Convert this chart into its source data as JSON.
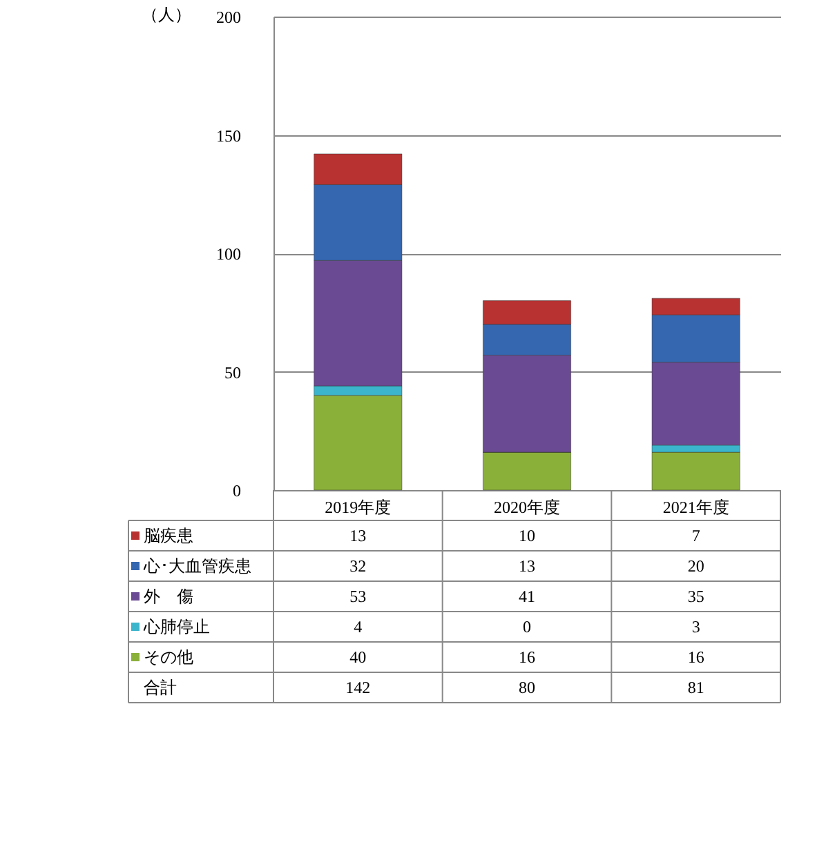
{
  "chart_data": {
    "type": "bar",
    "stacked": true,
    "ylabel": "（人）",
    "categories": [
      "2019年度",
      "2020年度",
      "2021年度"
    ],
    "series": [
      {
        "name": "その他",
        "color": "#8bb03a",
        "values": [
          40,
          16,
          16
        ]
      },
      {
        "name": "心肺停止",
        "color": "#3bb5cc",
        "values": [
          4,
          0,
          3
        ]
      },
      {
        "name": "外　傷",
        "color": "#6a4a92",
        "values": [
          53,
          41,
          35
        ]
      },
      {
        "name": "心･大血管疾患",
        "color": "#3467b0",
        "values": [
          32,
          13,
          20
        ]
      },
      {
        "name": "脳疾患",
        "color": "#b83232",
        "values": [
          13,
          10,
          7
        ]
      }
    ],
    "annotations": [
      "合計",
      "142",
      "80",
      "81"
    ],
    "data_labels": true,
    "ylim": [
      0,
      200
    ],
    "yticks": [
      0,
      50,
      100,
      150,
      200
    ],
    "grid": "y",
    "legend": "bottom left"
  }
}
